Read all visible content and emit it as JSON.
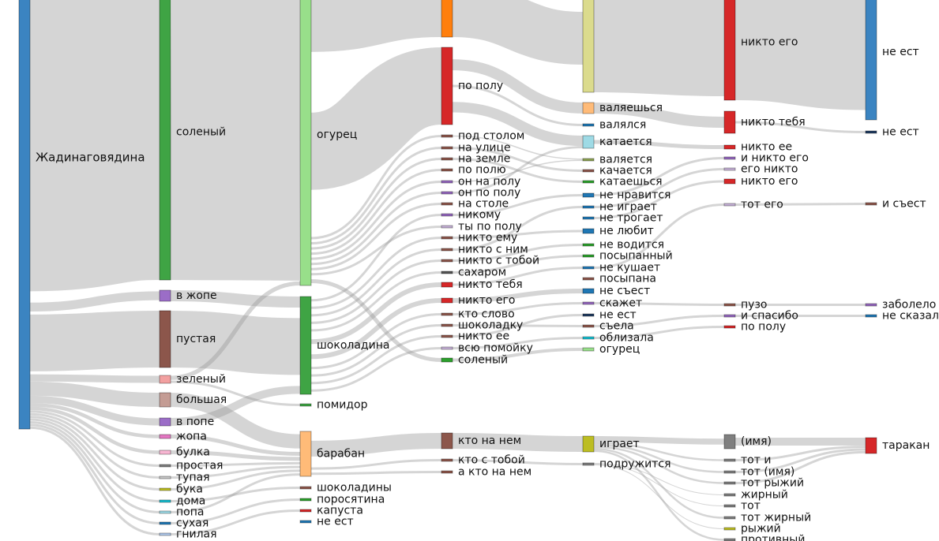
{
  "chart_data": {
    "type": "sankey",
    "nodes": [
      {
        "id": "n0",
        "col": 0,
        "label": "Жадинаговядина",
        "color": "#3b84c1"
      },
      {
        "id": "n1",
        "col": 1,
        "label": "соленый",
        "color": "#3fa444"
      },
      {
        "id": "n2",
        "col": 1,
        "label": "в жопе",
        "color": "#9b6dc7"
      },
      {
        "id": "n3",
        "col": 1,
        "label": "пустая",
        "color": "#8c564b"
      },
      {
        "id": "n4",
        "col": 1,
        "label": "зеленый",
        "color": "#f2a0a0"
      },
      {
        "id": "n5",
        "col": 1,
        "label": "большая",
        "color": "#c49c94"
      },
      {
        "id": "n6",
        "col": 1,
        "label": "в попе",
        "color": "#9b6dc7"
      },
      {
        "id": "n7",
        "col": 1,
        "label": "жопа",
        "color": "#e377c2"
      },
      {
        "id": "n8",
        "col": 1,
        "label": "булка",
        "color": "#f7b6d2"
      },
      {
        "id": "n9",
        "col": 1,
        "label": "простая",
        "color": "#7f7f7f"
      },
      {
        "id": "n10",
        "col": 1,
        "label": "тупая",
        "color": "#c7c7c7"
      },
      {
        "id": "n11",
        "col": 1,
        "label": "бука",
        "color": "#bcbd22"
      },
      {
        "id": "n12",
        "col": 1,
        "label": "дома",
        "color": "#17becf"
      },
      {
        "id": "n13",
        "col": 1,
        "label": "попа",
        "color": "#9edae5"
      },
      {
        "id": "n14",
        "col": 1,
        "label": "сухая",
        "color": "#1f77b4"
      },
      {
        "id": "n15",
        "col": 1,
        "label": "гнилая",
        "color": "#aec7e8"
      },
      {
        "id": "n20",
        "col": 2,
        "label": "огурец",
        "color": "#98df8a"
      },
      {
        "id": "n21",
        "col": 2,
        "label": "шоколадина",
        "color": "#3fa444"
      },
      {
        "id": "n22",
        "col": 2,
        "label": "помидор",
        "color": "#3fa444"
      },
      {
        "id": "n23",
        "col": 2,
        "label": "барабан",
        "color": "#ffbb78"
      },
      {
        "id": "n24",
        "col": 2,
        "label": "шоколадины",
        "color": "#8c564b"
      },
      {
        "id": "n25",
        "col": 2,
        "label": "поросятина",
        "color": "#2ca02c"
      },
      {
        "id": "n26",
        "col": 2,
        "label": "капуста",
        "color": "#d62728"
      },
      {
        "id": "n27",
        "col": 2,
        "label": "не ест",
        "color": "#1f77b4"
      },
      {
        "id": "n30",
        "col": 3,
        "label": "",
        "color": "#ff7f0e"
      },
      {
        "id": "n31",
        "col": 3,
        "label": "по полу",
        "color": "#d62728"
      },
      {
        "id": "n32",
        "col": 3,
        "label": "под столом",
        "color": "#8c564b"
      },
      {
        "id": "n33",
        "col": 3,
        "label": "на улице",
        "color": "#8c564b"
      },
      {
        "id": "n34",
        "col": 3,
        "label": "на земле",
        "color": "#8c564b"
      },
      {
        "id": "n35",
        "col": 3,
        "label": "по полю",
        "color": "#8c564b"
      },
      {
        "id": "n36",
        "col": 3,
        "label": "он на полу",
        "color": "#9467bd"
      },
      {
        "id": "n37",
        "col": 3,
        "label": "он по полу",
        "color": "#9467bd"
      },
      {
        "id": "n38",
        "col": 3,
        "label": "на столе",
        "color": "#8c564b"
      },
      {
        "id": "n39",
        "col": 3,
        "label": "никому",
        "color": "#9467bd"
      },
      {
        "id": "n40",
        "col": 3,
        "label": "ты по полу",
        "color": "#c5b0d5"
      },
      {
        "id": "n41",
        "col": 3,
        "label": "никто ему",
        "color": "#8c564b"
      },
      {
        "id": "n42",
        "col": 3,
        "label": "никто с ним",
        "color": "#8c564b"
      },
      {
        "id": "n43",
        "col": 3,
        "label": "никто с тобой",
        "color": "#8c564b"
      },
      {
        "id": "n44",
        "col": 3,
        "label": "сахаром",
        "color": "#555555"
      },
      {
        "id": "n45",
        "col": 3,
        "label": "никто тебя",
        "color": "#d62728"
      },
      {
        "id": "n46",
        "col": 3,
        "label": "никто его",
        "color": "#d62728"
      },
      {
        "id": "n47",
        "col": 3,
        "label": "кто слово",
        "color": "#8c564b"
      },
      {
        "id": "n48",
        "col": 3,
        "label": "шоколадку",
        "color": "#8c564b"
      },
      {
        "id": "n49",
        "col": 3,
        "label": "никто ее",
        "color": "#8c564b"
      },
      {
        "id": "n50",
        "col": 3,
        "label": "всю помойку",
        "color": "#c5b0d5"
      },
      {
        "id": "n51",
        "col": 3,
        "label": "соленый",
        "color": "#2ca02c"
      },
      {
        "id": "n52",
        "col": 3,
        "label": "кто на нем",
        "color": "#8c564b"
      },
      {
        "id": "n53",
        "col": 3,
        "label": "кто с тобой",
        "color": "#8c564b"
      },
      {
        "id": "n54",
        "col": 3,
        "label": "а кто на нем",
        "color": "#8c564b"
      },
      {
        "id": "n60",
        "col": 4,
        "label": "",
        "color": "#dbdb8d"
      },
      {
        "id": "n61",
        "col": 4,
        "label": "валяешься",
        "color": "#ffbb78"
      },
      {
        "id": "n62",
        "col": 4,
        "label": "валялся",
        "color": "#1f77b4"
      },
      {
        "id": "n63",
        "col": 4,
        "label": "катается",
        "color": "#9edae5"
      },
      {
        "id": "n64",
        "col": 4,
        "label": "валяется",
        "color": "#8ca252"
      },
      {
        "id": "n65",
        "col": 4,
        "label": "качается",
        "color": "#8c564b"
      },
      {
        "id": "n66",
        "col": 4,
        "label": "катаешься",
        "color": "#2ca02c"
      },
      {
        "id": "n67",
        "col": 4,
        "label": "не нравится",
        "color": "#1f77b4"
      },
      {
        "id": "n68",
        "col": 4,
        "label": "не играет",
        "color": "#1f77b4"
      },
      {
        "id": "n69",
        "col": 4,
        "label": "не трогает",
        "color": "#1f77b4"
      },
      {
        "id": "n70",
        "col": 4,
        "label": "не любит",
        "color": "#1f77b4"
      },
      {
        "id": "n71",
        "col": 4,
        "label": "не водится",
        "color": "#2ca02c"
      },
      {
        "id": "n72",
        "col": 4,
        "label": "посыпанный",
        "color": "#2ca02c"
      },
      {
        "id": "n73",
        "col": 4,
        "label": "не кушает",
        "color": "#1f77b4"
      },
      {
        "id": "n74",
        "col": 4,
        "label": "посыпана",
        "color": "#8c564b"
      },
      {
        "id": "n75",
        "col": 4,
        "label": "не съест",
        "color": "#1f77b4"
      },
      {
        "id": "n76",
        "col": 4,
        "label": "скажет",
        "color": "#9467bd"
      },
      {
        "id": "n77",
        "col": 4,
        "label": "не ест",
        "color": "#1f3a5f"
      },
      {
        "id": "n78",
        "col": 4,
        "label": "съела",
        "color": "#8c564b"
      },
      {
        "id": "n79",
        "col": 4,
        "label": "облизала",
        "color": "#17becf"
      },
      {
        "id": "n80",
        "col": 4,
        "label": "огурец",
        "color": "#98df8a"
      },
      {
        "id": "n81",
        "col": 4,
        "label": "играет",
        "color": "#bcbd22"
      },
      {
        "id": "n82",
        "col": 4,
        "label": "подружится",
        "color": "#7f7f7f"
      },
      {
        "id": "n90",
        "col": 5,
        "label": "никто его",
        "color": "#d62728"
      },
      {
        "id": "n91",
        "col": 5,
        "label": "никто тебя",
        "color": "#d62728"
      },
      {
        "id": "n92",
        "col": 5,
        "label": "никто ее",
        "color": "#d62728"
      },
      {
        "id": "n93",
        "col": 5,
        "label": "и никто его",
        "color": "#9467bd"
      },
      {
        "id": "n94",
        "col": 5,
        "label": "его никто",
        "color": "#c5b0d5"
      },
      {
        "id": "n95",
        "col": 5,
        "label": "никто его",
        "color": "#d62728"
      },
      {
        "id": "n96",
        "col": 5,
        "label": "тот его",
        "color": "#c5b0d5"
      },
      {
        "id": "n97",
        "col": 5,
        "label": "пузо",
        "color": "#8c564b"
      },
      {
        "id": "n98",
        "col": 5,
        "label": "и спасибо",
        "color": "#9467bd"
      },
      {
        "id": "n99",
        "col": 5,
        "label": "по полу",
        "color": "#d62728"
      },
      {
        "id": "n100",
        "col": 5,
        "label": "(имя)",
        "color": "#7f7f7f"
      },
      {
        "id": "n101",
        "col": 5,
        "label": "тот и",
        "color": "#7f7f7f"
      },
      {
        "id": "n102",
        "col": 5,
        "label": "тот (имя)",
        "color": "#7f7f7f"
      },
      {
        "id": "n103",
        "col": 5,
        "label": "тот рыжий",
        "color": "#7f7f7f"
      },
      {
        "id": "n104",
        "col": 5,
        "label": "жирный",
        "color": "#7f7f7f"
      },
      {
        "id": "n105",
        "col": 5,
        "label": "тот",
        "color": "#7f7f7f"
      },
      {
        "id": "n106",
        "col": 5,
        "label": "тот жирный",
        "color": "#7f7f7f"
      },
      {
        "id": "n107",
        "col": 5,
        "label": "рыжий",
        "color": "#bcbd22"
      },
      {
        "id": "n108",
        "col": 5,
        "label": "противный",
        "color": "#7f7f7f"
      },
      {
        "id": "n110",
        "col": 6,
        "label": "не ест",
        "color": "#3b84c1"
      },
      {
        "id": "n111",
        "col": 6,
        "label": "не ест",
        "color": "#1f3a5f"
      },
      {
        "id": "n112",
        "col": 6,
        "label": "и съест",
        "color": "#8c564b"
      },
      {
        "id": "n113",
        "col": 6,
        "label": "заболело",
        "color": "#9467bd"
      },
      {
        "id": "n114",
        "col": 6,
        "label": "не сказал",
        "color": "#1f77b4"
      },
      {
        "id": "n115",
        "col": 6,
        "label": "таракан",
        "color": "#d62728"
      }
    ],
    "links": [
      {
        "s": "n0",
        "t": "n1",
        "v": 355
      },
      {
        "s": "n0",
        "t": "n2",
        "v": 10
      },
      {
        "s": "n0",
        "t": "n3",
        "v": 70
      },
      {
        "s": "n0",
        "t": "n4",
        "v": 8
      },
      {
        "s": "n0",
        "t": "n5",
        "v": 16
      },
      {
        "s": "n0",
        "t": "n6",
        "v": 8
      },
      {
        "s": "n0",
        "t": "n7",
        "v": 4
      },
      {
        "s": "n0",
        "t": "n8",
        "v": 4
      },
      {
        "s": "n0",
        "t": "n9",
        "v": 3
      },
      {
        "s": "n0",
        "t": "n10",
        "v": 3
      },
      {
        "s": "n0",
        "t": "n11",
        "v": 3
      },
      {
        "s": "n0",
        "t": "n12",
        "v": 3
      },
      {
        "s": "n0",
        "t": "n13",
        "v": 3
      },
      {
        "s": "n0",
        "t": "n14",
        "v": 3
      },
      {
        "s": "n0",
        "t": "n15",
        "v": 3
      },
      {
        "s": "n1",
        "t": "n20",
        "v": 355
      },
      {
        "s": "n2",
        "t": "n21",
        "v": 10
      },
      {
        "s": "n3",
        "t": "n21",
        "v": 70
      },
      {
        "s": "n4",
        "t": "n20",
        "v": 5
      },
      {
        "s": "n4",
        "t": "n22",
        "v": 3
      },
      {
        "s": "n5",
        "t": "n23",
        "v": 16
      },
      {
        "s": "n6",
        "t": "n21",
        "v": 8
      },
      {
        "s": "n7",
        "t": "n23",
        "v": 4
      },
      {
        "s": "n8",
        "t": "n23",
        "v": 4
      },
      {
        "s": "n9",
        "t": "n23",
        "v": 3
      },
      {
        "s": "n10",
        "t": "n23",
        "v": 3
      },
      {
        "s": "n11",
        "t": "n23",
        "v": 3
      },
      {
        "s": "n12",
        "t": "n24",
        "v": 3
      },
      {
        "s": "n13",
        "t": "n23",
        "v": 3
      },
      {
        "s": "n14",
        "t": "n25",
        "v": 3
      },
      {
        "s": "n15",
        "t": "n26",
        "v": 3
      },
      {
        "s": "n20",
        "t": "n30",
        "v": 48
      },
      {
        "s": "n20",
        "t": "n31",
        "v": 98
      },
      {
        "s": "n20",
        "t": "n32",
        "v": 3
      },
      {
        "s": "n20",
        "t": "n33",
        "v": 3
      },
      {
        "s": "n20",
        "t": "n34",
        "v": 3
      },
      {
        "s": "n20",
        "t": "n35",
        "v": 3
      },
      {
        "s": "n20",
        "t": "n36",
        "v": 3
      },
      {
        "s": "n20",
        "t": "n37",
        "v": 3
      },
      {
        "s": "n20",
        "t": "n38",
        "v": 3
      },
      {
        "s": "n20",
        "t": "n40",
        "v": 3
      },
      {
        "s": "n20",
        "t": "n51",
        "v": 5
      },
      {
        "s": "n21",
        "t": "n39",
        "v": 3
      },
      {
        "s": "n21",
        "t": "n41",
        "v": 3
      },
      {
        "s": "n21",
        "t": "n42",
        "v": 3
      },
      {
        "s": "n21",
        "t": "n43",
        "v": 3
      },
      {
        "s": "n21",
        "t": "n44",
        "v": 3
      },
      {
        "s": "n21",
        "t": "n45",
        "v": 6
      },
      {
        "s": "n21",
        "t": "n46",
        "v": 6
      },
      {
        "s": "n21",
        "t": "n47",
        "v": 3
      },
      {
        "s": "n21",
        "t": "n48",
        "v": 3
      },
      {
        "s": "n21",
        "t": "n49",
        "v": 3
      },
      {
        "s": "n21",
        "t": "n50",
        "v": 3
      },
      {
        "s": "n23",
        "t": "n52",
        "v": 20
      },
      {
        "s": "n23",
        "t": "n53",
        "v": 3
      },
      {
        "s": "n23",
        "t": "n54",
        "v": 3
      },
      {
        "s": "n30",
        "t": "n60",
        "v": 48
      },
      {
        "s": "n31",
        "t": "n61",
        "v": 14
      },
      {
        "s": "n31",
        "t": "n62",
        "v": 3
      },
      {
        "s": "n31",
        "t": "n63",
        "v": 14
      },
      {
        "s": "n32",
        "t": "n64",
        "v": 3
      },
      {
        "s": "n33",
        "t": "n65",
        "v": 3
      },
      {
        "s": "n34",
        "t": "n66",
        "v": 3
      },
      {
        "s": "n36",
        "t": "n64",
        "v": 3
      },
      {
        "s": "n37",
        "t": "n63",
        "v": 3
      },
      {
        "s": "n39",
        "t": "n67",
        "v": 3
      },
      {
        "s": "n41",
        "t": "n70",
        "v": 3
      },
      {
        "s": "n42",
        "t": "n68",
        "v": 3
      },
      {
        "s": "n43",
        "t": "n71",
        "v": 3
      },
      {
        "s": "n44",
        "t": "n72",
        "v": 3
      },
      {
        "s": "n45",
        "t": "n73",
        "v": 3
      },
      {
        "s": "n46",
        "t": "n75",
        "v": 3
      },
      {
        "s": "n47",
        "t": "n76",
        "v": 3
      },
      {
        "s": "n48",
        "t": "n78",
        "v": 3
      },
      {
        "s": "n49",
        "t": "n77",
        "v": 3
      },
      {
        "s": "n50",
        "t": "n79",
        "v": 3
      },
      {
        "s": "n51",
        "t": "n80",
        "v": 3
      },
      {
        "s": "n52",
        "t": "n81",
        "v": 20
      },
      {
        "s": "n53",
        "t": "n82",
        "v": 3
      },
      {
        "s": "n60",
        "t": "n90",
        "v": 48
      },
      {
        "s": "n61",
        "t": "n91",
        "v": 14
      },
      {
        "s": "n63",
        "t": "n92",
        "v": 3
      },
      {
        "s": "n67",
        "t": "n93",
        "v": 3
      },
      {
        "s": "n68",
        "t": "n94",
        "v": 3
      },
      {
        "s": "n69",
        "t": "n95",
        "v": 3
      },
      {
        "s": "n73",
        "t": "n96",
        "v": 3
      },
      {
        "s": "n76",
        "t": "n97",
        "v": 3
      },
      {
        "s": "n78",
        "t": "n98",
        "v": 3
      },
      {
        "s": "n79",
        "t": "n99",
        "v": 3
      },
      {
        "s": "n81",
        "t": "n100",
        "v": 6
      },
      {
        "s": "n81",
        "t": "n101",
        "v": 2
      },
      {
        "s": "n81",
        "t": "n102",
        "v": 2
      },
      {
        "s": "n81",
        "t": "n103",
        "v": 2
      },
      {
        "s": "n82",
        "t": "n104",
        "v": 2
      },
      {
        "s": "n82",
        "t": "n105",
        "v": 2
      },
      {
        "s": "n81",
        "t": "n106",
        "v": 2
      },
      {
        "s": "n82",
        "t": "n107",
        "v": 2
      },
      {
        "s": "n81",
        "t": "n108",
        "v": 2
      },
      {
        "s": "n90",
        "t": "n110",
        "v": 48
      },
      {
        "s": "n91",
        "t": "n111",
        "v": 3
      },
      {
        "s": "n96",
        "t": "n112",
        "v": 3
      },
      {
        "s": "n97",
        "t": "n113",
        "v": 3
      },
      {
        "s": "n98",
        "t": "n114",
        "v": 3
      },
      {
        "s": "n100",
        "t": "n115",
        "v": 6
      },
      {
        "s": "n101",
        "t": "n115",
        "v": 2
      },
      {
        "s": "n102",
        "t": "n115",
        "v": 2
      },
      {
        "s": "n103",
        "t": "n115",
        "v": 2
      }
    ]
  }
}
